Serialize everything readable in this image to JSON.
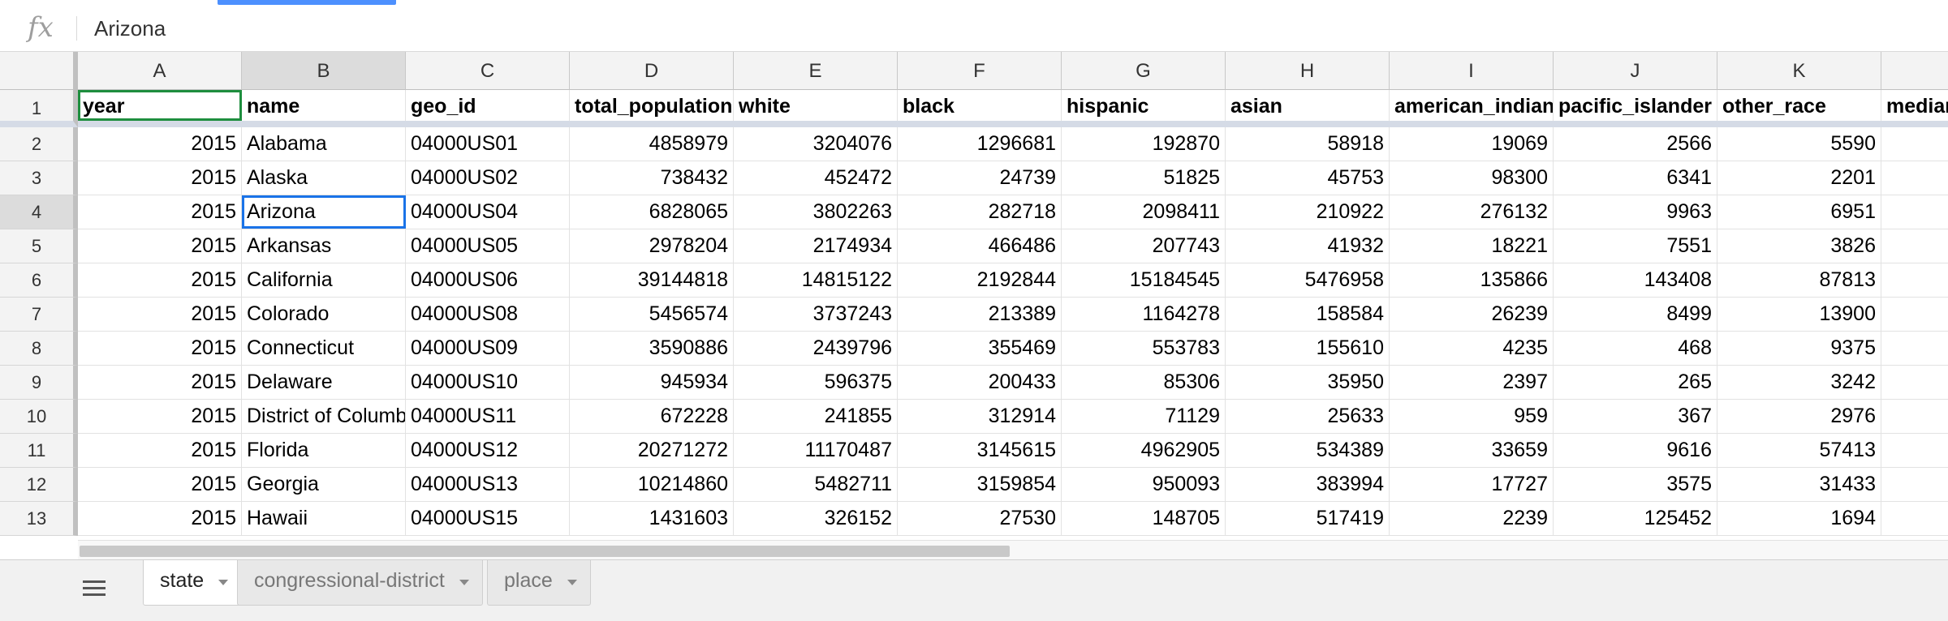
{
  "formula_bar": {
    "icon": "fx-icon",
    "value": "Arizona"
  },
  "columns": [
    "A",
    "B",
    "C",
    "D",
    "E",
    "F",
    "G",
    "H",
    "I",
    "J",
    "K",
    ""
  ],
  "header_row": {
    "row_number": "1",
    "cells": [
      "year",
      "name",
      "geo_id",
      "total_population",
      "white",
      "black",
      "hispanic",
      "asian",
      "american_indian",
      "pacific_islander",
      "other_race",
      "median"
    ]
  },
  "rows": [
    {
      "n": "2",
      "cells": [
        "2015",
        "Alabama",
        "04000US01",
        "4858979",
        "3204076",
        "1296681",
        "192870",
        "58918",
        "19069",
        "2566",
        "5590",
        ""
      ]
    },
    {
      "n": "3",
      "cells": [
        "2015",
        "Alaska",
        "04000US02",
        "738432",
        "452472",
        "24739",
        "51825",
        "45753",
        "98300",
        "6341",
        "2201",
        ""
      ]
    },
    {
      "n": "4",
      "cells": [
        "2015",
        "Arizona",
        "04000US04",
        "6828065",
        "3802263",
        "282718",
        "2098411",
        "210922",
        "276132",
        "9963",
        "6951",
        ""
      ]
    },
    {
      "n": "5",
      "cells": [
        "2015",
        "Arkansas",
        "04000US05",
        "2978204",
        "2174934",
        "466486",
        "207743",
        "41932",
        "18221",
        "7551",
        "3826",
        ""
      ]
    },
    {
      "n": "6",
      "cells": [
        "2015",
        "California",
        "04000US06",
        "39144818",
        "14815122",
        "2192844",
        "15184545",
        "5476958",
        "135866",
        "143408",
        "87813",
        ""
      ]
    },
    {
      "n": "7",
      "cells": [
        "2015",
        "Colorado",
        "04000US08",
        "5456574",
        "3737243",
        "213389",
        "1164278",
        "158584",
        "26239",
        "8499",
        "13900",
        ""
      ]
    },
    {
      "n": "8",
      "cells": [
        "2015",
        "Connecticut",
        "04000US09",
        "3590886",
        "2439796",
        "355469",
        "553783",
        "155610",
        "4235",
        "468",
        "9375",
        ""
      ]
    },
    {
      "n": "9",
      "cells": [
        "2015",
        "Delaware",
        "04000US10",
        "945934",
        "596375",
        "200433",
        "85306",
        "35950",
        "2397",
        "265",
        "3242",
        ""
      ]
    },
    {
      "n": "10",
      "cells": [
        "2015",
        "District of Columbia",
        "04000US11",
        "672228",
        "241855",
        "312914",
        "71129",
        "25633",
        "959",
        "367",
        "2976",
        ""
      ]
    },
    {
      "n": "11",
      "cells": [
        "2015",
        "Florida",
        "04000US12",
        "20271272",
        "11170487",
        "3145615",
        "4962905",
        "534389",
        "33659",
        "9616",
        "57413",
        ""
      ]
    },
    {
      "n": "12",
      "cells": [
        "2015",
        "Georgia",
        "04000US13",
        "10214860",
        "5482711",
        "3159854",
        "950093",
        "383994",
        "17727",
        "3575",
        "31433",
        ""
      ]
    },
    {
      "n": "13",
      "cells": [
        "2015",
        "Hawaii",
        "04000US15",
        "1431603",
        "326152",
        "27530",
        "148705",
        "517419",
        "2239",
        "125452",
        "1694",
        ""
      ]
    }
  ],
  "selection": {
    "row": "4",
    "column": "B"
  },
  "sheet_tabs": [
    {
      "label": "state",
      "active": true
    },
    {
      "label": "congressional-district",
      "active": false
    },
    {
      "label": "place",
      "active": false
    }
  ],
  "colors": {
    "selection": "#1a73e8",
    "header_selection": "#1e8e3e",
    "accent": "#4d90fe"
  }
}
